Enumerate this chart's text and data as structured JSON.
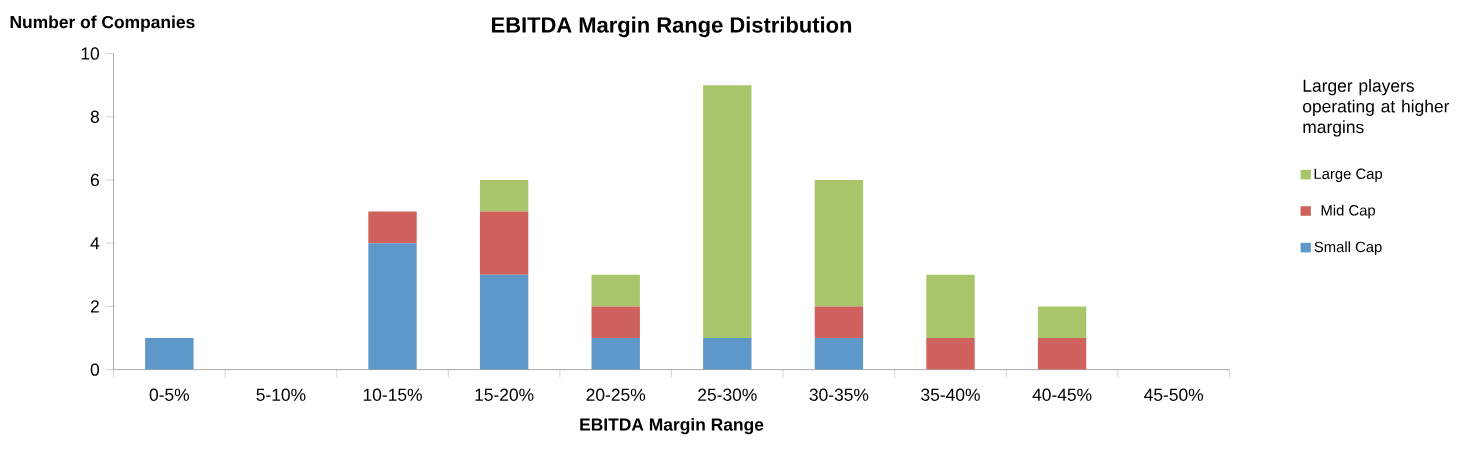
{
  "chart_data": {
    "type": "bar",
    "stacked": true,
    "title": "EBITDA Margin Range Distribution",
    "xlabel": "EBITDA Margin Range",
    "ylabel": "Number of Companies",
    "categories": [
      "0-5%",
      "5-10%",
      "10-15%",
      "15-20%",
      "20-25%",
      "25-30%",
      "30-35%",
      "35-40%",
      "40-45%",
      "45-50%"
    ],
    "series": [
      {
        "name": "Small Cap",
        "color": "#5e97c9",
        "values": [
          1,
          0,
          4,
          3,
          1,
          1,
          1,
          0,
          0,
          0
        ]
      },
      {
        "name": "Mid Cap",
        "color": "#cf625c",
        "values": [
          0,
          0,
          1,
          2,
          1,
          0,
          1,
          1,
          1,
          0
        ]
      },
      {
        "name": "Large Cap",
        "color": "#a9c56a",
        "values": [
          0,
          0,
          0,
          1,
          1,
          8,
          4,
          2,
          1,
          0
        ]
      }
    ],
    "ylim": [
      0,
      10
    ],
    "yticks": [
      0,
      2,
      4,
      6,
      8,
      10
    ],
    "grid": false,
    "legend": "right",
    "annotations": [
      "Larger players operating at higher margins"
    ]
  }
}
